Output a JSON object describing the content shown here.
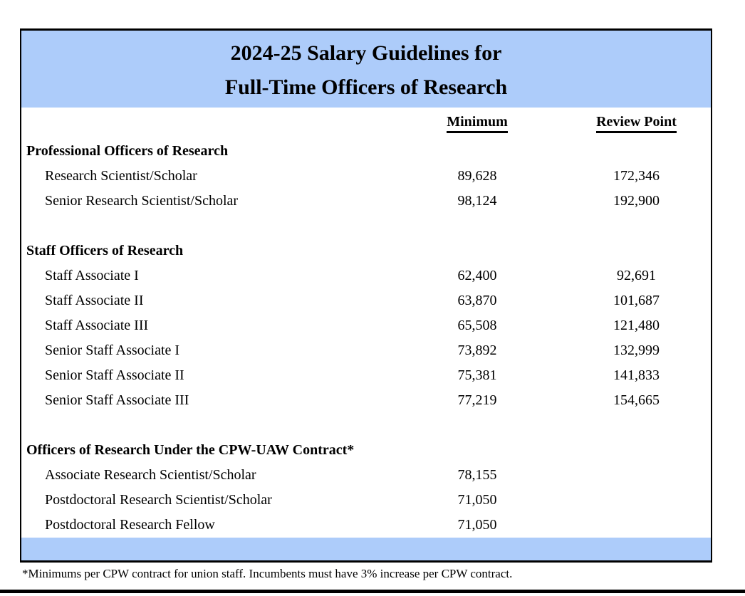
{
  "colors": {
    "accent": "#ADCCFA",
    "border": "#000000"
  },
  "title": {
    "line1": "2024-25 Salary Guidelines for",
    "line2": "Full-Time Officers of Research"
  },
  "table": {
    "columns": {
      "minimum": "Minimum",
      "review_point": "Review Point"
    },
    "sections": [
      {
        "heading": "Professional Officers of Research",
        "rows": [
          {
            "title": "Research Scientist/Scholar",
            "minimum": "89,628",
            "review_point": "172,346"
          },
          {
            "title": "Senior Research Scientist/Scholar",
            "minimum": "98,124",
            "review_point": "192,900"
          }
        ]
      },
      {
        "heading": "Staff Officers of Research",
        "rows": [
          {
            "title": "Staff Associate I",
            "minimum": "62,400",
            "review_point": "92,691"
          },
          {
            "title": "Staff Associate II",
            "minimum": "63,870",
            "review_point": "101,687"
          },
          {
            "title": "Staff Associate III",
            "minimum": "65,508",
            "review_point": "121,480"
          },
          {
            "title": "Senior Staff Associate I",
            "minimum": "73,892",
            "review_point": "132,999"
          },
          {
            "title": "Senior Staff Associate II",
            "minimum": "75,381",
            "review_point": "141,833"
          },
          {
            "title": "Senior Staff Associate III",
            "minimum": "77,219",
            "review_point": "154,665"
          }
        ]
      },
      {
        "heading": "Officers of Research Under the CPW-UAW Contract*",
        "rows": [
          {
            "title": "Associate Research Scientist/Scholar",
            "minimum": "78,155",
            "review_point": ""
          },
          {
            "title": "Postdoctoral Research Scientist/Scholar",
            "minimum": "71,050",
            "review_point": ""
          },
          {
            "title": "Postdoctoral Research Fellow",
            "minimum": "71,050",
            "review_point": ""
          }
        ]
      }
    ]
  },
  "footnote": "*Minimums per CPW contract for union staff. Incumbents must have 3% increase per CPW contract."
}
